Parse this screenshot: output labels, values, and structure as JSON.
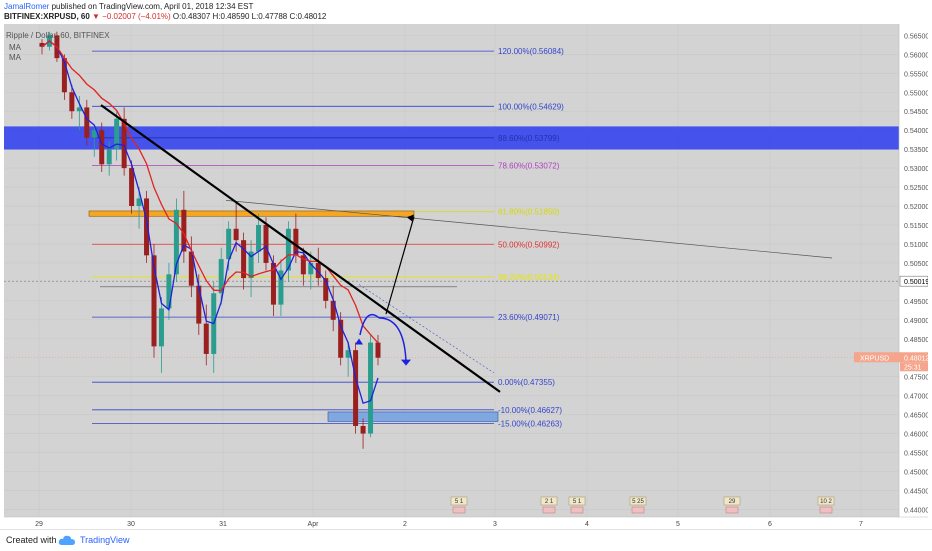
{
  "header": {
    "author": "JamalRomer",
    "published": "published on TradingView.com, April 01, 2018 12:34 EST",
    "symbol": "BITFINEX:XRPUSD, 60",
    "change": "▼ −0.02007 (−4.01%)",
    "ohlc": "O:0.48307 H:0.48590 L:0.47788 C:0.48012"
  },
  "legend": {
    "title": "Ripple / Dollar, 60, BITFINEX",
    "ma1": "MA",
    "ma2": "MA"
  },
  "footer": {
    "created_with": "Created with",
    "brand": "TradingView"
  },
  "price_tag": {
    "label": "XRPUSD",
    "value": "0.48012",
    "countdown": "25:31"
  },
  "crosshair_value": "0.50019",
  "colors": {
    "background": "#d3d3d3",
    "fib_line": "#3344cc",
    "ma_blue": "#1e22dd",
    "ma_red": "#e32222",
    "resistance_zone": "#2b3cf0",
    "orange_zone": "#f5a623",
    "trendline": "#000000",
    "up_candle": "#2a9d8f",
    "down_candle": "#9a1f1f",
    "price_tag": "#f5a58c"
  },
  "chart_data": {
    "type": "candlestick",
    "title": "Ripple / Dollar, 60, BITFINEX",
    "y_ticks": [
      "0.56500",
      "0.56000",
      "0.55500",
      "0.55000",
      "0.54500",
      "0.54000",
      "0.53500",
      "0.53000",
      "0.52500",
      "0.52000",
      "0.51500",
      "0.51000",
      "0.50500",
      "0.50019",
      "0.49500",
      "0.49000",
      "0.48500",
      "0.48012",
      "0.47500",
      "0.47000",
      "0.46500",
      "0.46000",
      "0.45500",
      "0.45000",
      "0.44500",
      "0.44000"
    ],
    "ylim": [
      0.438,
      0.568
    ],
    "x_ticks": [
      "29",
      "30",
      "31",
      "Apr",
      "2",
      "3",
      "4",
      "5",
      "6",
      "7"
    ],
    "fib_levels": [
      {
        "label": "120.00%(0.56084)",
        "price": 0.56084,
        "color": "#3344cc"
      },
      {
        "label": "100.00%(0.54629)",
        "price": 0.54629,
        "color": "#3344cc"
      },
      {
        "label": "88.60%(0.53799)",
        "price": 0.53799,
        "color": "#2233aa"
      },
      {
        "label": "78.60%(0.53072)",
        "price": 0.53072,
        "color": "#b040c0"
      },
      {
        "label": "61.80%(0.51850)",
        "price": 0.5185,
        "color": "#d8d800"
      },
      {
        "label": "50.00%(0.50992)",
        "price": 0.50992,
        "color": "#e03030"
      },
      {
        "label": "38.20%(0.50134)",
        "price": 0.50134,
        "color": "#e6e600"
      },
      {
        "label": "23.60%(0.49071)",
        "price": 0.49071,
        "color": "#3344cc"
      },
      {
        "label": "0.00%(0.47355)",
        "price": 0.47355,
        "color": "#3344cc"
      },
      {
        "label": "-10.00%(0.46627)",
        "price": 0.46627,
        "color": "#3344cc"
      },
      {
        "label": "-15.00%(0.46263)",
        "price": 0.46263,
        "color": "#3344cc"
      }
    ],
    "event_markers": [
      "5 1",
      "2 1",
      "5 1",
      "5 25",
      "29",
      "10 2"
    ],
    "candles": [
      [
        0.563,
        0.564,
        0.56,
        0.562
      ],
      [
        0.562,
        0.566,
        0.561,
        0.565
      ],
      [
        0.565,
        0.566,
        0.558,
        0.559
      ],
      [
        0.559,
        0.56,
        0.548,
        0.55
      ],
      [
        0.55,
        0.552,
        0.543,
        0.545
      ],
      [
        0.545,
        0.549,
        0.54,
        0.546
      ],
      [
        0.546,
        0.548,
        0.536,
        0.538
      ],
      [
        0.538,
        0.541,
        0.533,
        0.54
      ],
      [
        0.54,
        0.542,
        0.529,
        0.531
      ],
      [
        0.531,
        0.537,
        0.528,
        0.535
      ],
      [
        0.535,
        0.545,
        0.532,
        0.543
      ],
      [
        0.543,
        0.546,
        0.528,
        0.53
      ],
      [
        0.53,
        0.532,
        0.518,
        0.52
      ],
      [
        0.52,
        0.525,
        0.514,
        0.522
      ],
      [
        0.522,
        0.524,
        0.505,
        0.507
      ],
      [
        0.507,
        0.51,
        0.48,
        0.483
      ],
      [
        0.483,
        0.496,
        0.476,
        0.493
      ],
      [
        0.493,
        0.505,
        0.49,
        0.502
      ],
      [
        0.502,
        0.522,
        0.5,
        0.519
      ],
      [
        0.519,
        0.524,
        0.505,
        0.508
      ],
      [
        0.508,
        0.512,
        0.496,
        0.499
      ],
      [
        0.499,
        0.502,
        0.486,
        0.489
      ],
      [
        0.489,
        0.494,
        0.478,
        0.481
      ],
      [
        0.481,
        0.5,
        0.476,
        0.497
      ],
      [
        0.497,
        0.509,
        0.494,
        0.506
      ],
      [
        0.506,
        0.516,
        0.503,
        0.514
      ],
      [
        0.514,
        0.521,
        0.508,
        0.511
      ],
      [
        0.511,
        0.513,
        0.498,
        0.501
      ],
      [
        0.501,
        0.511,
        0.496,
        0.508
      ],
      [
        0.508,
        0.518,
        0.505,
        0.515
      ],
      [
        0.515,
        0.517,
        0.503,
        0.505
      ],
      [
        0.505,
        0.507,
        0.491,
        0.494
      ],
      [
        0.494,
        0.506,
        0.491,
        0.503
      ],
      [
        0.503,
        0.516,
        0.5,
        0.514
      ],
      [
        0.514,
        0.518,
        0.505,
        0.507
      ],
      [
        0.507,
        0.509,
        0.499,
        0.502
      ],
      [
        0.502,
        0.508,
        0.498,
        0.505
      ],
      [
        0.505,
        0.509,
        0.499,
        0.501
      ],
      [
        0.501,
        0.503,
        0.493,
        0.495
      ],
      [
        0.495,
        0.499,
        0.487,
        0.49
      ],
      [
        0.49,
        0.492,
        0.478,
        0.48
      ],
      [
        0.48,
        0.484,
        0.475,
        0.482
      ],
      [
        0.482,
        0.484,
        0.46,
        0.462
      ],
      [
        0.462,
        0.464,
        0.456,
        0.46
      ],
      [
        0.46,
        0.486,
        0.459,
        0.484
      ],
      [
        0.484,
        0.486,
        0.478,
        0.48
      ]
    ]
  }
}
